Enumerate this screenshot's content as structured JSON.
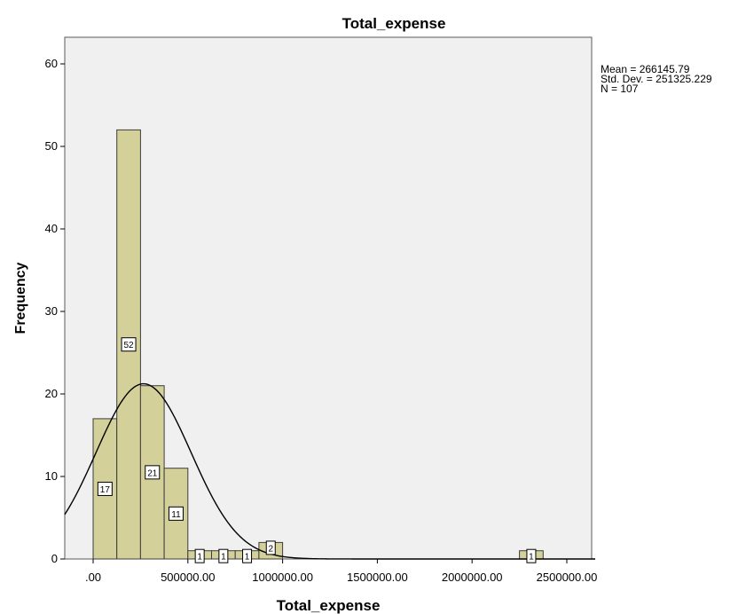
{
  "chart_data": {
    "type": "bar",
    "title": "Total_expense",
    "xlabel": "Total_expense",
    "ylabel": "Frequency",
    "xlim": [
      -150000,
      2650000
    ],
    "ylim": [
      0,
      64
    ],
    "x_ticks": [
      0,
      500000,
      1000000,
      1500000,
      2000000,
      2500000
    ],
    "x_tick_labels": [
      ".00",
      "500000.00",
      "1000000.00",
      "1500000.00",
      "2000000.00",
      "2500000.00"
    ],
    "y_ticks": [
      0,
      10,
      20,
      30,
      40,
      50,
      60
    ],
    "y_tick_labels": [
      "0",
      "10",
      "20",
      "30",
      "40",
      "50",
      "60"
    ],
    "bin_width": 125000,
    "bins": [
      {
        "start": 0,
        "end": 125000,
        "value": 17,
        "label": "17"
      },
      {
        "start": 125000,
        "end": 250000,
        "value": 52,
        "label": "52"
      },
      {
        "start": 250000,
        "end": 375000,
        "value": 21,
        "label": "21"
      },
      {
        "start": 375000,
        "end": 500000,
        "value": 11,
        "label": "11"
      },
      {
        "start": 500000,
        "end": 625000,
        "value": 1,
        "label": "1"
      },
      {
        "start": 625000,
        "end": 750000,
        "value": 1,
        "label": "1"
      },
      {
        "start": 750000,
        "end": 875000,
        "value": 1,
        "label": "1"
      },
      {
        "start": 875000,
        "end": 1000000,
        "value": 2,
        "label": "2"
      },
      {
        "start": 2250000,
        "end": 2375000,
        "value": 1,
        "label": "1"
      }
    ],
    "normal_curve": {
      "mean": 266145.79,
      "std": 251325.229,
      "n": 107
    },
    "grid": false,
    "colors": {
      "bar_fill": "#d4d09a",
      "bar_stroke": "#3c3c3c",
      "plot_bg": "#f0f0f0",
      "curve": "#000000"
    }
  },
  "stats": {
    "mean": "Mean = 266145.79",
    "std_dev": "Std. Dev. = 251325.229",
    "n": "N = 107"
  }
}
